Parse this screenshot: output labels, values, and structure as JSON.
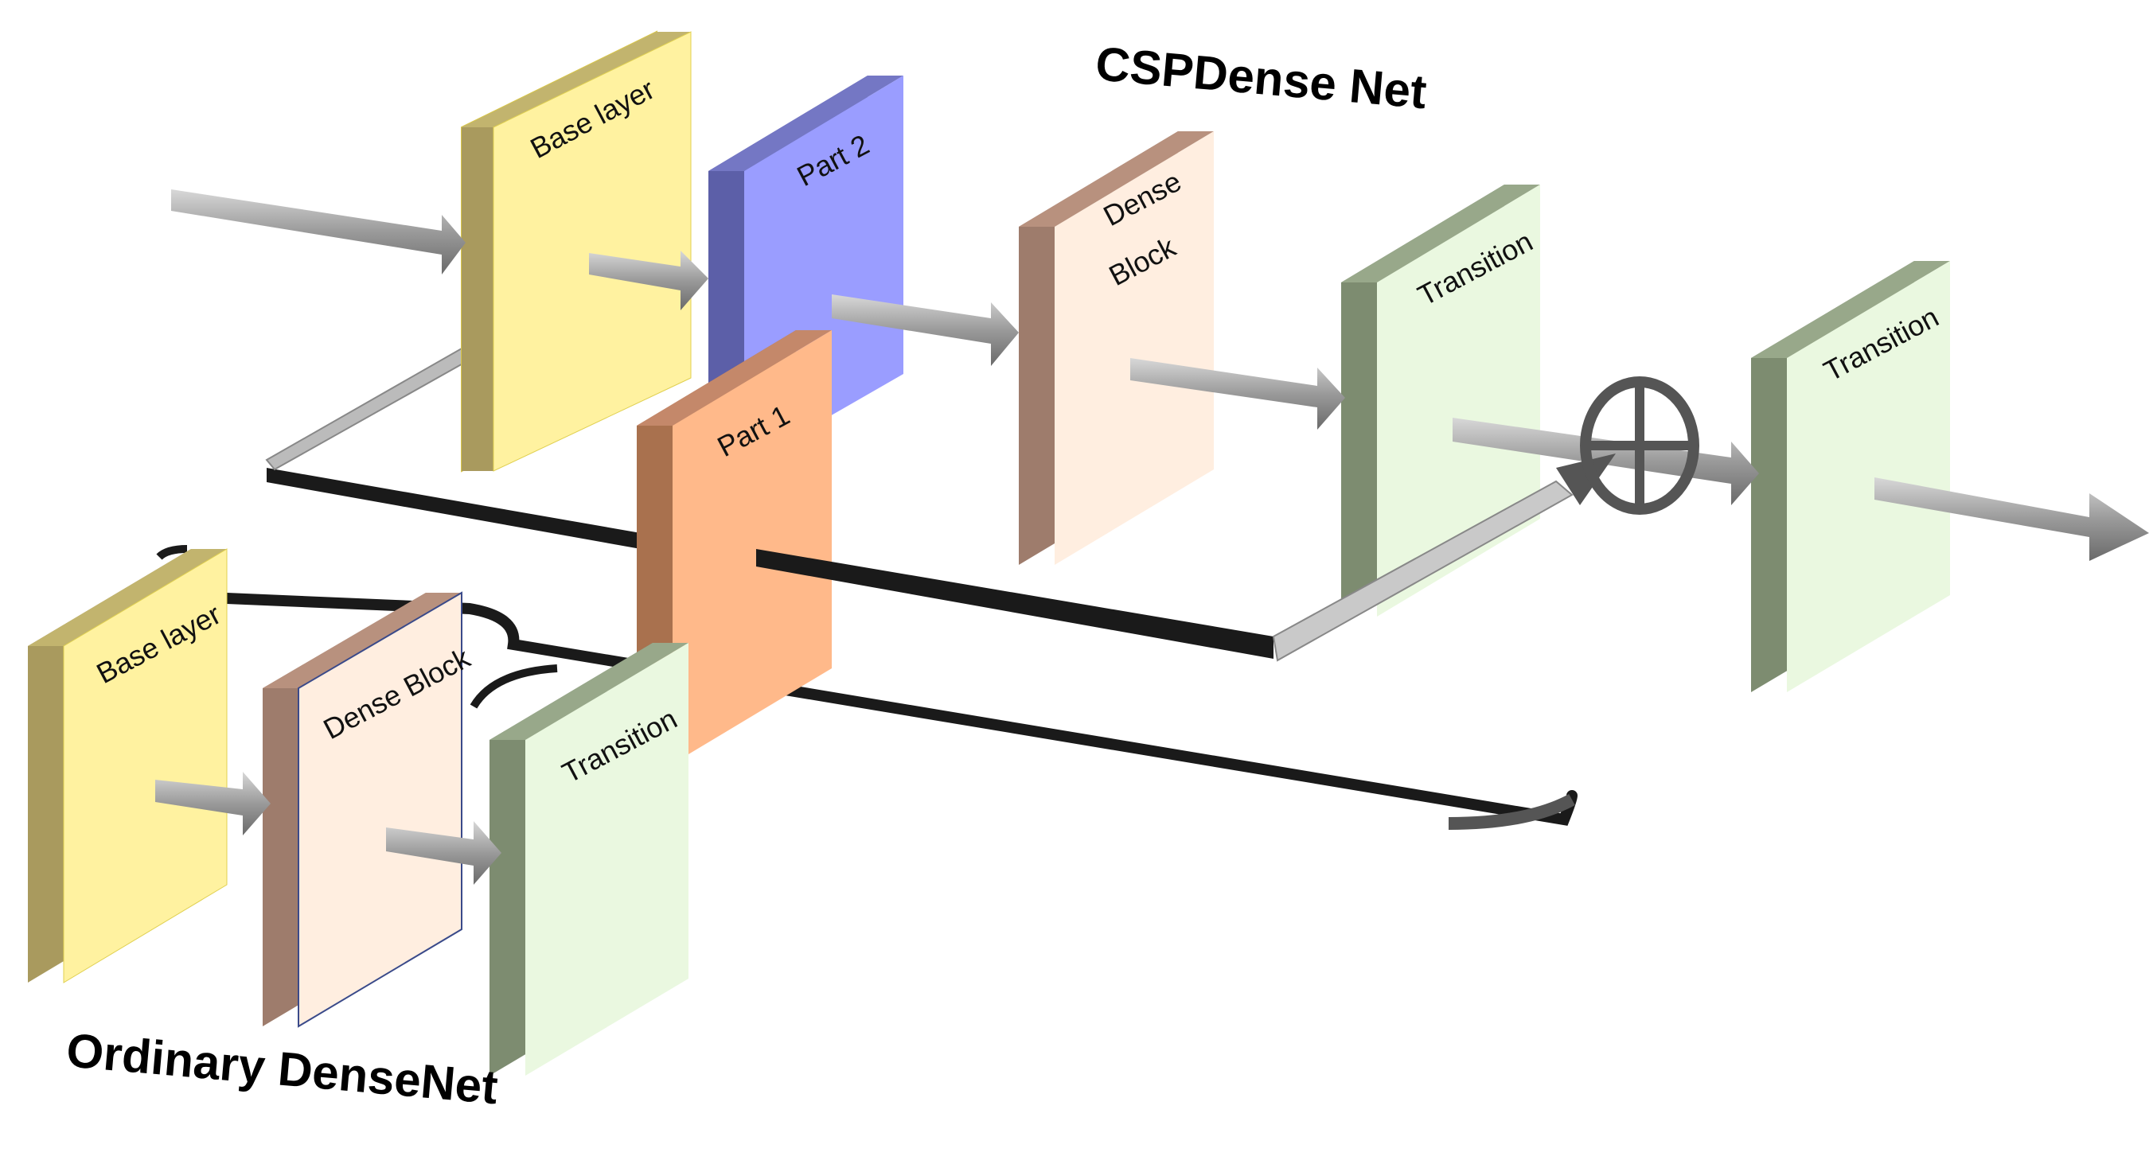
{
  "titles": {
    "csp": "CSPDense Net",
    "ordinary": "Ordinary DenseNet"
  },
  "csp_blocks": {
    "base_layer": "Base layer",
    "part2": "Part 2",
    "part1": "Part 1",
    "dense_block_line1": "Dense",
    "dense_block_line2": "Block",
    "transition1": "Transition",
    "transition2": "Transition"
  },
  "ordinary_blocks": {
    "base_layer": "Base layer",
    "dense_block": "Dense Block",
    "transition": "Transition"
  },
  "operators": {
    "merge": "concatenation-circle-icon"
  },
  "colors": {
    "base_face": "#FFF2A0",
    "base_side": "#A99A5E",
    "part2_face": "#9A9DFF",
    "part2_side": "#5C5FA8",
    "part1_face": "#FFB98A",
    "part1_side": "#A9714E",
    "dense_face": "#FFEEE0",
    "dense_side": "#9E7C6C",
    "trans_face": "#EAF8E0",
    "trans_side": "#7D8C70",
    "arrow": "#8C8C8C",
    "line": "#1a1a1a"
  }
}
